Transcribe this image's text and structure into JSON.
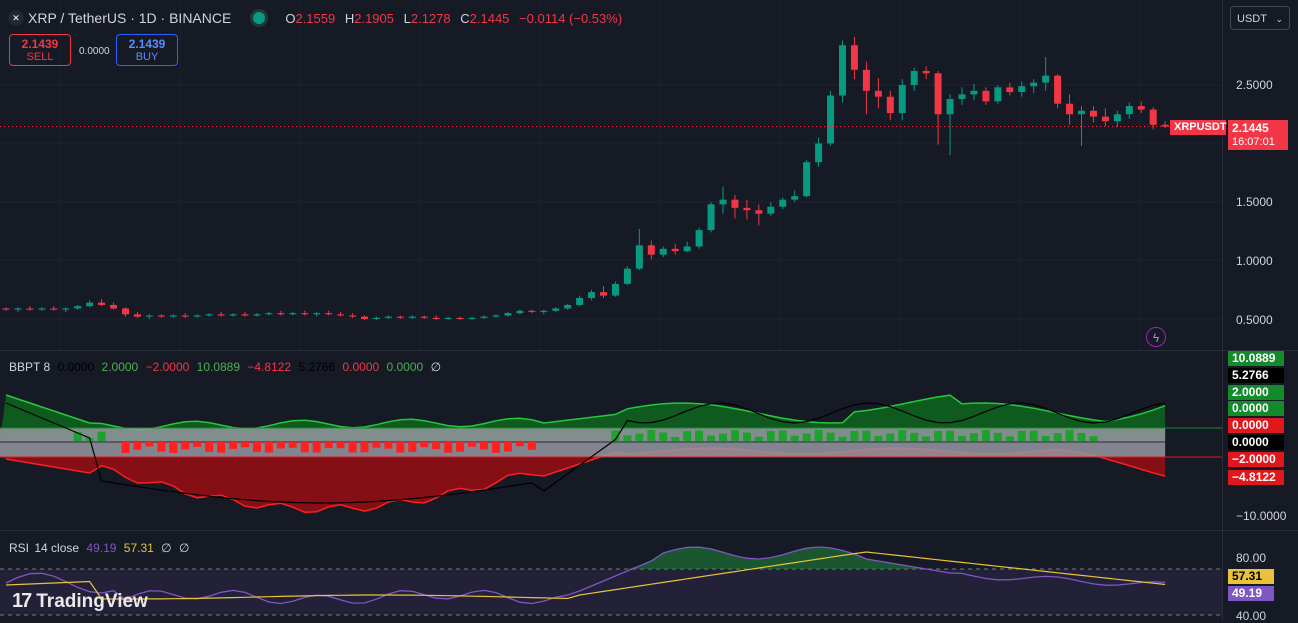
{
  "header": {
    "symbol": "XRP / TetherUS · 1D · BINANCE",
    "ohlc": {
      "o_label": "O",
      "o": "2.1559",
      "h_label": "H",
      "h": "2.1905",
      "l_label": "L",
      "l": "2.1278",
      "c_label": "C",
      "c": "2.1445",
      "change": "−0.0114 (−0.53%)"
    }
  },
  "trade": {
    "sell_price": "2.1439",
    "sell_label": "SELL",
    "spread": "0.0000",
    "buy_price": "2.1439",
    "buy_label": "BUY"
  },
  "currency_selector": "USDT",
  "price_axis": {
    "ticks": [
      "2.5000",
      "1.5000",
      "1.0000",
      "0.5000"
    ]
  },
  "last_price": {
    "symbol": "XRPUSDT",
    "price": "2.1445",
    "countdown": "16:07:01"
  },
  "bbpt": {
    "legend": {
      "name": "BBPT 8",
      "v1": "0.0000",
      "v2": "2.0000",
      "v3": "−2.0000",
      "v4": "10.0889",
      "v5": "−4.8122",
      "v6": "5.2766",
      "v7": "0.0000",
      "v8": "0.0000",
      "v9": "∅"
    },
    "tags": {
      "upper": "10.0889",
      "line": "5.2766",
      "green1": "2.0000",
      "green2": "0.0000",
      "red1": "0.0000",
      "zero": "0.0000",
      "red2": "−2.0000",
      "lower": "−4.8122"
    },
    "axis_tick": "−10.0000"
  },
  "rsi": {
    "legend": {
      "name": "RSI",
      "params": "14 close",
      "value": "49.19",
      "ma": "57.31",
      "e1": "∅",
      "e2": "∅"
    },
    "ticks": [
      "80.00",
      "40.00"
    ],
    "tags": {
      "ma": "57.31",
      "value": "49.19"
    }
  },
  "brand": "TradingView",
  "colors": {
    "up": "#089981",
    "down": "#f23645",
    "rsi": "#7e57c2",
    "ma": "#e8c23a"
  },
  "chart_data": {
    "type": "candlestick",
    "ylim": [
      0.3,
      2.95
    ],
    "candles": [
      [
        0.59,
        0.6,
        0.57,
        0.58
      ],
      [
        0.58,
        0.6,
        0.56,
        0.59
      ],
      [
        0.59,
        0.61,
        0.57,
        0.58
      ],
      [
        0.58,
        0.6,
        0.57,
        0.59
      ],
      [
        0.59,
        0.61,
        0.57,
        0.58
      ],
      [
        0.58,
        0.6,
        0.56,
        0.59
      ],
      [
        0.59,
        0.62,
        0.58,
        0.61
      ],
      [
        0.61,
        0.66,
        0.6,
        0.64
      ],
      [
        0.64,
        0.67,
        0.61,
        0.62
      ],
      [
        0.62,
        0.64,
        0.58,
        0.59
      ],
      [
        0.59,
        0.6,
        0.52,
        0.54
      ],
      [
        0.54,
        0.56,
        0.51,
        0.52
      ],
      [
        0.52,
        0.54,
        0.5,
        0.53
      ],
      [
        0.53,
        0.54,
        0.51,
        0.52
      ],
      [
        0.52,
        0.54,
        0.51,
        0.53
      ],
      [
        0.53,
        0.55,
        0.51,
        0.52
      ],
      [
        0.52,
        0.54,
        0.51,
        0.53
      ],
      [
        0.53,
        0.55,
        0.52,
        0.54
      ],
      [
        0.54,
        0.56,
        0.52,
        0.53
      ],
      [
        0.53,
        0.55,
        0.52,
        0.54
      ],
      [
        0.54,
        0.56,
        0.52,
        0.53
      ],
      [
        0.53,
        0.55,
        0.52,
        0.54
      ],
      [
        0.54,
        0.56,
        0.53,
        0.55
      ],
      [
        0.55,
        0.57,
        0.53,
        0.54
      ],
      [
        0.54,
        0.56,
        0.53,
        0.55
      ],
      [
        0.55,
        0.57,
        0.53,
        0.54
      ],
      [
        0.54,
        0.56,
        0.52,
        0.55
      ],
      [
        0.55,
        0.57,
        0.53,
        0.54
      ],
      [
        0.54,
        0.56,
        0.52,
        0.53
      ],
      [
        0.53,
        0.55,
        0.51,
        0.52
      ],
      [
        0.52,
        0.53,
        0.49,
        0.5
      ],
      [
        0.5,
        0.52,
        0.49,
        0.51
      ],
      [
        0.51,
        0.53,
        0.5,
        0.52
      ],
      [
        0.52,
        0.53,
        0.5,
        0.51
      ],
      [
        0.51,
        0.53,
        0.5,
        0.52
      ],
      [
        0.52,
        0.53,
        0.5,
        0.51
      ],
      [
        0.51,
        0.53,
        0.49,
        0.5
      ],
      [
        0.5,
        0.52,
        0.49,
        0.51
      ],
      [
        0.51,
        0.52,
        0.49,
        0.5
      ],
      [
        0.5,
        0.52,
        0.49,
        0.51
      ],
      [
        0.51,
        0.53,
        0.5,
        0.52
      ],
      [
        0.52,
        0.54,
        0.51,
        0.53
      ],
      [
        0.53,
        0.56,
        0.52,
        0.55
      ],
      [
        0.55,
        0.58,
        0.54,
        0.57
      ],
      [
        0.57,
        0.58,
        0.55,
        0.56
      ],
      [
        0.56,
        0.58,
        0.54,
        0.57
      ],
      [
        0.57,
        0.6,
        0.56,
        0.59
      ],
      [
        0.59,
        0.63,
        0.58,
        0.62
      ],
      [
        0.62,
        0.7,
        0.61,
        0.68
      ],
      [
        0.68,
        0.75,
        0.66,
        0.73
      ],
      [
        0.73,
        0.78,
        0.68,
        0.7
      ],
      [
        0.7,
        0.82,
        0.69,
        0.8
      ],
      [
        0.8,
        0.95,
        0.79,
        0.93
      ],
      [
        0.93,
        1.27,
        0.92,
        1.13
      ],
      [
        1.13,
        1.17,
        1.01,
        1.05
      ],
      [
        1.05,
        1.12,
        1.03,
        1.1
      ],
      [
        1.1,
        1.14,
        1.05,
        1.08
      ],
      [
        1.08,
        1.16,
        1.07,
        1.12
      ],
      [
        1.12,
        1.28,
        1.1,
        1.26
      ],
      [
        1.26,
        1.5,
        1.24,
        1.48
      ],
      [
        1.48,
        1.63,
        1.4,
        1.52
      ],
      [
        1.52,
        1.56,
        1.36,
        1.45
      ],
      [
        1.45,
        1.52,
        1.35,
        1.43
      ],
      [
        1.43,
        1.48,
        1.3,
        1.4
      ],
      [
        1.4,
        1.5,
        1.38,
        1.46
      ],
      [
        1.46,
        1.54,
        1.44,
        1.52
      ],
      [
        1.52,
        1.6,
        1.5,
        1.55
      ],
      [
        1.55,
        1.86,
        1.54,
        1.84
      ],
      [
        1.84,
        2.05,
        1.8,
        2.0
      ],
      [
        2.0,
        2.45,
        1.98,
        2.41
      ],
      [
        2.41,
        2.88,
        2.35,
        2.84
      ],
      [
        2.84,
        2.91,
        2.55,
        2.63
      ],
      [
        2.63,
        2.7,
        2.25,
        2.45
      ],
      [
        2.45,
        2.56,
        2.3,
        2.4
      ],
      [
        2.4,
        2.45,
        2.2,
        2.26
      ],
      [
        2.26,
        2.55,
        2.2,
        2.5
      ],
      [
        2.5,
        2.65,
        2.45,
        2.62
      ],
      [
        2.62,
        2.66,
        2.55,
        2.6
      ],
      [
        2.6,
        2.62,
        1.99,
        2.25
      ],
      [
        2.25,
        2.42,
        1.9,
        2.38
      ],
      [
        2.38,
        2.48,
        2.33,
        2.42
      ],
      [
        2.42,
        2.51,
        2.37,
        2.45
      ],
      [
        2.45,
        2.48,
        2.33,
        2.36
      ],
      [
        2.36,
        2.5,
        2.34,
        2.48
      ],
      [
        2.48,
        2.52,
        2.41,
        2.44
      ],
      [
        2.44,
        2.53,
        2.4,
        2.49
      ],
      [
        2.49,
        2.55,
        2.43,
        2.52
      ],
      [
        2.52,
        2.74,
        2.45,
        2.58
      ],
      [
        2.58,
        2.59,
        2.3,
        2.34
      ],
      [
        2.34,
        2.42,
        2.16,
        2.25
      ],
      [
        2.25,
        2.32,
        1.98,
        2.28
      ],
      [
        2.28,
        2.32,
        2.18,
        2.23
      ],
      [
        2.23,
        2.3,
        2.15,
        2.19
      ],
      [
        2.19,
        2.28,
        2.14,
        2.25
      ],
      [
        2.25,
        2.35,
        2.21,
        2.32
      ],
      [
        2.32,
        2.36,
        2.26,
        2.29
      ],
      [
        2.29,
        2.31,
        2.12,
        2.16
      ],
      [
        2.16,
        2.19,
        2.13,
        2.145
      ]
    ]
  }
}
